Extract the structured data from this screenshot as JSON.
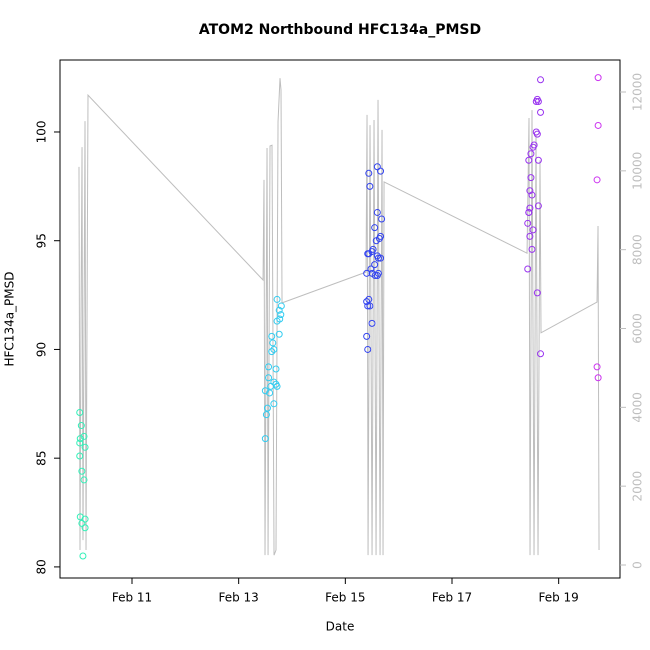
{
  "chart_data": {
    "type": "scatter",
    "title": "ATOM2 Northbound HFC134a_PMSD",
    "x_label": "Date",
    "y_label": "HFC134a_PMSD",
    "xlim": [
      9.65,
      20.15
    ],
    "xticks": [
      {
        "value": 11,
        "label": "Feb 11"
      },
      {
        "value": 13,
        "label": "Feb 13"
      },
      {
        "value": 15,
        "label": "Feb 15"
      },
      {
        "value": 17,
        "label": "Feb 17"
      },
      {
        "value": 19,
        "label": "Feb 19"
      }
    ],
    "ylim": [
      79.49,
      103.31
    ],
    "yticks": [
      80,
      85,
      90,
      95,
      100
    ],
    "y2lim": [
      -330,
      12812
    ],
    "y2ticks": [
      0,
      2000,
      4000,
      6000,
      8000,
      10000,
      12000
    ],
    "y2_color": "#bebebe",
    "series": [
      {
        "type": "scatter",
        "color": "#33f0b8",
        "x": [
          10.02,
          10.05,
          10.03,
          10.1,
          10.02,
          10.12,
          10.02,
          10.06,
          10.1,
          10.03,
          10.06,
          10.12,
          10.12,
          10.08
        ],
        "values": [
          87.1,
          86.5,
          85.9,
          86.0,
          85.7,
          85.5,
          85.1,
          84.4,
          84.0,
          82.3,
          82.0,
          82.2,
          81.8,
          80.5
        ]
      },
      {
        "type": "scatter",
        "color": "#33ccf0",
        "x": [
          13.72,
          13.8,
          13.76,
          13.79,
          13.77,
          13.72,
          13.76,
          13.62,
          13.64,
          13.66,
          13.62,
          13.56,
          13.7,
          13.56,
          13.66,
          13.7,
          13.6,
          13.72,
          13.58,
          13.66,
          13.5,
          13.54,
          13.52,
          13.5
        ],
        "values": [
          92.3,
          92.0,
          91.8,
          91.6,
          91.4,
          91.3,
          90.7,
          90.6,
          90.3,
          90.0,
          89.9,
          89.2,
          89.1,
          88.7,
          88.5,
          88.4,
          88.3,
          88.3,
          88.0,
          87.5,
          88.1,
          87.3,
          87.0,
          85.9
        ]
      },
      {
        "type": "scatter",
        "color": "#3344f0",
        "x": [
          15.6,
          15.66,
          15.44,
          15.46,
          15.6,
          15.55,
          15.68,
          15.66,
          15.64,
          15.42,
          15.58,
          15.52,
          15.44,
          15.5,
          15.6,
          15.66,
          15.62,
          15.4,
          15.48,
          15.55,
          15.5,
          15.6,
          15.44,
          15.56,
          15.62,
          15.4,
          15.46,
          15.42,
          15.5,
          15.4,
          15.42
        ],
        "values": [
          98.4,
          98.2,
          98.1,
          97.5,
          96.3,
          95.6,
          96.0,
          95.2,
          95.1,
          94.4,
          95.0,
          94.6,
          94.4,
          94.5,
          94.3,
          94.2,
          94.2,
          93.5,
          93.7,
          93.9,
          93.5,
          93.4,
          92.3,
          93.4,
          93.5,
          92.2,
          92.0,
          92.0,
          91.2,
          90.6,
          90.0
        ],
        "note_color": null
      },
      {
        "type": "scatter",
        "color": "#9933f0",
        "x": [
          18.66,
          18.6,
          18.58,
          18.62,
          18.66,
          18.58,
          18.6,
          18.54,
          18.52,
          18.48,
          18.62,
          18.44,
          18.48,
          18.5,
          18.46,
          18.62,
          18.46,
          18.44,
          18.44,
          18.42,
          18.52,
          18.46,
          18.5,
          18.42,
          18.6,
          18.66
        ],
        "values": [
          102.4,
          101.5,
          101.4,
          101.4,
          100.9,
          100.0,
          99.9,
          99.4,
          99.3,
          99.0,
          98.7,
          98.7,
          97.9,
          97.1,
          97.3,
          96.6,
          96.5,
          96.3,
          96.3,
          95.8,
          95.5,
          95.2,
          94.6,
          93.7,
          92.6,
          89.8
        ]
      },
      {
        "type": "scatter",
        "color": "#cc33f0",
        "x": [
          19.74,
          19.74,
          19.72,
          19.72,
          19.74
        ],
        "values": [
          102.5,
          100.3,
          97.8,
          89.2,
          88.7
        ]
      },
      {
        "type": "line",
        "axis": "y2",
        "color": "#bebebe",
        "x": [
          10.006,
          10.025,
          10.044,
          10.063,
          10.081,
          10.119,
          10.138,
          10.175,
          13.457,
          13.475,
          13.494,
          13.532,
          13.551,
          13.588,
          13.625,
          13.663,
          13.7,
          13.738,
          13.775,
          13.794,
          13.813,
          15.388,
          15.407,
          15.426,
          15.463,
          15.501,
          15.538,
          15.576,
          15.613,
          15.651,
          15.688,
          15.707,
          15.726,
          18.407,
          18.444,
          18.463,
          18.5,
          18.538,
          18.575,
          18.613,
          18.65,
          18.669,
          19.719,
          19.738,
          19.757
        ],
        "values": [
          10100,
          380,
          6270,
          10600,
          630,
          11260,
          380,
          11920,
          7230,
          9770,
          250,
          10580,
          250,
          10630,
          10650,
          250,
          380,
          11240,
          12350,
          12050,
          6650,
          7430,
          11420,
          250,
          11160,
          250,
          11290,
          250,
          11800,
          250,
          11040,
          250,
          9720,
          7910,
          11340,
          250,
          11540,
          250,
          10910,
          250,
          10270,
          5890,
          6670,
          8600,
          380
        ]
      }
    ]
  }
}
